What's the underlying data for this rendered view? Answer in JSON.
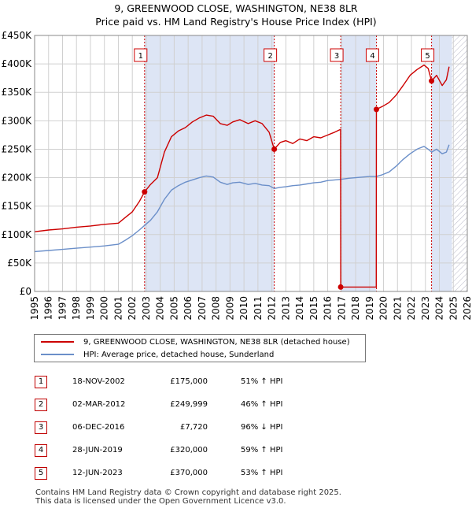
{
  "title_line1": "9, GREENWOOD CLOSE, WASHINGTON, NE38 8LR",
  "title_line2": "Price paid vs. HM Land Registry's House Price Index (HPI)",
  "colors": {
    "property_line": "#cc0000",
    "hpi_line": "#6b8fc9",
    "shade": "#dde5f5",
    "hatch": "#b8b8c8",
    "grid": "#d0d0d0",
    "marker": "#cc0000"
  },
  "legend": {
    "property_label": "9, GREENWOOD CLOSE, WASHINGTON, NE38 8LR (detached house)",
    "hpi_label": "HPI: Average price, detached house, Sunderland"
  },
  "chart_data": {
    "type": "line",
    "title": "9, GREENWOOD CLOSE, WASHINGTON, NE38 8LR — Price paid vs. HM Land Registry's House Price Index (HPI)",
    "xlabel": "",
    "ylabel": "",
    "xlim": [
      1995,
      2026
    ],
    "ylim": [
      0,
      450000
    ],
    "y_ticks": [
      0,
      50000,
      100000,
      150000,
      200000,
      250000,
      300000,
      350000,
      400000,
      450000
    ],
    "y_tick_labels": [
      "£0",
      "£50K",
      "£100K",
      "£150K",
      "£200K",
      "£250K",
      "£300K",
      "£350K",
      "£400K",
      "£450K"
    ],
    "x_ticks": [
      1995,
      1996,
      1997,
      1998,
      1999,
      2000,
      2001,
      2002,
      2003,
      2004,
      2005,
      2006,
      2007,
      2008,
      2009,
      2010,
      2011,
      2012,
      2013,
      2014,
      2015,
      2016,
      2017,
      2018,
      2019,
      2020,
      2021,
      2022,
      2023,
      2024,
      2025,
      2026
    ],
    "shaded_ranges": [
      [
        2002.88,
        2012.17
      ],
      [
        2016.93,
        2019.49
      ],
      [
        2023.44,
        2024.9
      ]
    ],
    "future_hatch_from": 2024.9,
    "sales": [
      {
        "label": "1",
        "date": "18-NOV-2002",
        "x": 2002.88,
        "price": 175000,
        "price_label": "£175,000",
        "hpi_change": "51% ↑ HPI"
      },
      {
        "label": "2",
        "date": "02-MAR-2012",
        "x": 2012.17,
        "price": 249999,
        "price_label": "£249,999",
        "hpi_change": "46% ↑ HPI"
      },
      {
        "label": "3",
        "date": "06-DEC-2016",
        "x": 2016.93,
        "price": 7720,
        "price_label": "£7,720",
        "hpi_change": "96% ↓ HPI"
      },
      {
        "label": "4",
        "date": "28-JUN-2019",
        "x": 2019.49,
        "price": 320000,
        "price_label": "£320,000",
        "hpi_change": "59% ↑ HPI"
      },
      {
        "label": "5",
        "date": "12-JUN-2023",
        "x": 2023.44,
        "price": 370000,
        "price_label": "£370,000",
        "hpi_change": "53% ↑ HPI"
      }
    ],
    "series": [
      {
        "name": "9, GREENWOOD CLOSE, WASHINGTON, NE38 8LR (detached house)",
        "x": [
          1995,
          1996,
          1997,
          1998,
          1999,
          2000,
          2001,
          2001.5,
          2002,
          2002.5,
          2002.88,
          2003.3,
          2003.8,
          2004.3,
          2004.8,
          2005.3,
          2005.8,
          2006.3,
          2006.8,
          2007.3,
          2007.8,
          2008.3,
          2008.8,
          2009.2,
          2009.7,
          2010.3,
          2010.8,
          2011.3,
          2011.8,
          2012.17,
          2012.6,
          2013,
          2013.5,
          2014,
          2014.5,
          2015,
          2015.5,
          2016,
          2016.5,
          2016.92,
          2016.93,
          2019.48,
          2019.49,
          2019.9,
          2020.4,
          2020.9,
          2021.4,
          2021.9,
          2022.4,
          2022.9,
          2023.2,
          2023.44,
          2023.8,
          2024.2,
          2024.5,
          2024.7
        ],
        "values": [
          105000,
          108000,
          110000,
          113000,
          115000,
          118000,
          120000,
          130000,
          140000,
          158000,
          175000,
          188000,
          200000,
          245000,
          272000,
          282000,
          288000,
          298000,
          305000,
          310000,
          308000,
          295000,
          292000,
          298000,
          302000,
          295000,
          300000,
          295000,
          280000,
          249999,
          262000,
          265000,
          260000,
          268000,
          265000,
          272000,
          270000,
          275000,
          280000,
          285000,
          7720,
          7720,
          320000,
          325000,
          332000,
          345000,
          362000,
          380000,
          390000,
          398000,
          392000,
          370000,
          380000,
          362000,
          372000,
          395000
        ]
      },
      {
        "name": "HPI: Average price, detached house, Sunderland",
        "x": [
          1995,
          1996,
          1997,
          1998,
          1999,
          2000,
          2001,
          2001.5,
          2002,
          2002.5,
          2002.88,
          2003.3,
          2003.8,
          2004.3,
          2004.8,
          2005.3,
          2005.8,
          2006.3,
          2006.8,
          2007.3,
          2007.8,
          2008.3,
          2008.8,
          2009.2,
          2009.7,
          2010.3,
          2010.8,
          2011.3,
          2011.8,
          2012.17,
          2012.6,
          2013,
          2013.5,
          2014,
          2014.5,
          2015,
          2015.5,
          2016,
          2016.5,
          2016.93,
          2017.5,
          2018,
          2018.5,
          2019,
          2019.49,
          2019.9,
          2020.4,
          2020.9,
          2021.4,
          2021.9,
          2022.4,
          2022.9,
          2023.2,
          2023.44,
          2023.8,
          2024.2,
          2024.5,
          2024.7
        ],
        "values": [
          70000,
          72000,
          74000,
          76000,
          78000,
          80000,
          83000,
          90000,
          98000,
          108000,
          116000,
          125000,
          140000,
          162000,
          178000,
          186000,
          192000,
          196000,
          200000,
          203000,
          201000,
          192000,
          188000,
          191000,
          192000,
          188000,
          190000,
          187000,
          186000,
          181000,
          183000,
          184000,
          186000,
          187000,
          189000,
          191000,
          192000,
          195000,
          196000,
          197000,
          199000,
          200000,
          201000,
          202000,
          202000,
          205000,
          210000,
          220000,
          232000,
          242000,
          250000,
          255000,
          250000,
          245000,
          250000,
          242000,
          245000,
          258000
        ]
      }
    ]
  },
  "footer": {
    "line1": "Contains HM Land Registry data © Crown copyright and database right 2025.",
    "line2": "This data is licensed under the Open Government Licence v3.0."
  }
}
